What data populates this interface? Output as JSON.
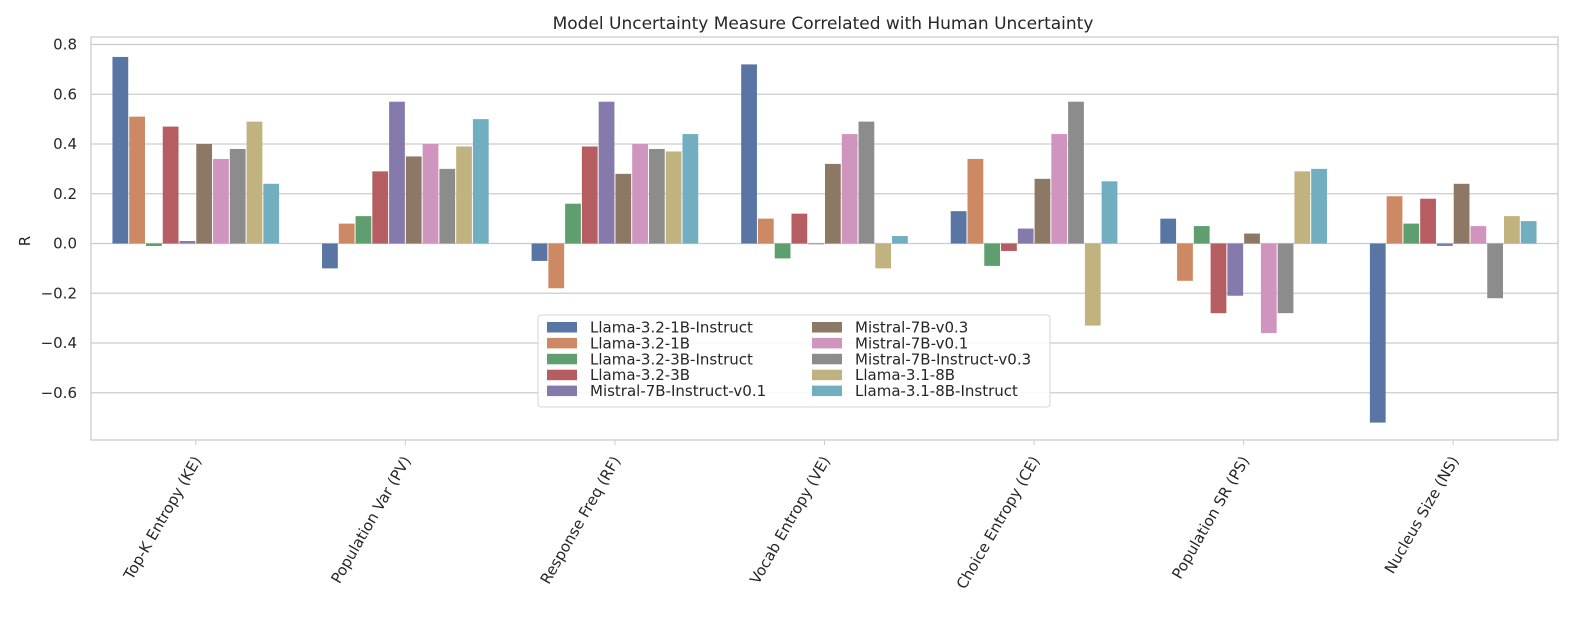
{
  "chart_data": {
    "type": "bar",
    "title": "Model Uncertainty Measure Correlated with Human Uncertainty",
    "xlabel": "",
    "ylabel": "R",
    "ylim": [
      -0.8,
      0.83
    ],
    "yticks": [
      "0.8",
      "0.6",
      "0.4",
      "0.2",
      "0.0",
      "−0.2",
      "−0.4",
      "−0.6"
    ],
    "ytick_values": [
      0.8,
      0.6,
      0.4,
      0.2,
      0.0,
      -0.2,
      -0.4,
      -0.6
    ],
    "grid": true,
    "legend_position": "lower-center",
    "categories": [
      "Top-K Entropy (KE)",
      "Population Var (PV)",
      "Response Freq (RF)",
      "Vocab Entropy (VE)",
      "Choice Entropy (CE)",
      "Population SR (PS)",
      "Nucleus Size (NS)"
    ],
    "series": [
      {
        "name": "Llama-3.2-1B-Instruct",
        "color": "#5975a4",
        "values": [
          0.75,
          -0.1,
          -0.07,
          0.72,
          0.13,
          0.1,
          -0.72
        ]
      },
      {
        "name": "Llama-3.2-1B",
        "color": "#cc8963",
        "values": [
          0.51,
          0.08,
          -0.18,
          0.1,
          0.34,
          -0.15,
          0.19
        ]
      },
      {
        "name": "Llama-3.2-3B-Instruct",
        "color": "#5f9e6e",
        "values": [
          -0.01,
          0.11,
          0.16,
          -0.06,
          -0.09,
          0.07,
          0.08
        ]
      },
      {
        "name": "Llama-3.2-3B",
        "color": "#b55d60",
        "values": [
          0.47,
          0.29,
          0.39,
          0.12,
          -0.03,
          -0.28,
          0.18
        ]
      },
      {
        "name": "Mistral-7B-Instruct-v0.1",
        "color": "#857aab",
        "values": [
          0.01,
          0.57,
          0.57,
          0.0,
          0.06,
          -0.21,
          -0.01
        ]
      },
      {
        "name": "Mistral-7B-v0.3",
        "color": "#8d7866",
        "values": [
          0.4,
          0.35,
          0.28,
          0.32,
          0.26,
          0.04,
          0.24
        ]
      },
      {
        "name": "Mistral-7B-v0.1",
        "color": "#d095bf",
        "values": [
          0.34,
          0.4,
          0.4,
          0.44,
          0.44,
          -0.36,
          0.07
        ]
      },
      {
        "name": "Mistral-7B-Instruct-v0.3",
        "color": "#8c8c8c",
        "values": [
          0.38,
          0.3,
          0.38,
          0.49,
          0.57,
          -0.28,
          -0.22
        ]
      },
      {
        "name": "Llama-3.1-8B",
        "color": "#c1b37f",
        "values": [
          0.49,
          0.39,
          0.37,
          -0.1,
          -0.33,
          0.29,
          0.11
        ]
      },
      {
        "name": "Llama-3.1-8B-Instruct",
        "color": "#71aec0",
        "values": [
          0.24,
          0.5,
          0.44,
          0.03,
          0.25,
          0.3,
          0.09
        ]
      }
    ]
  }
}
